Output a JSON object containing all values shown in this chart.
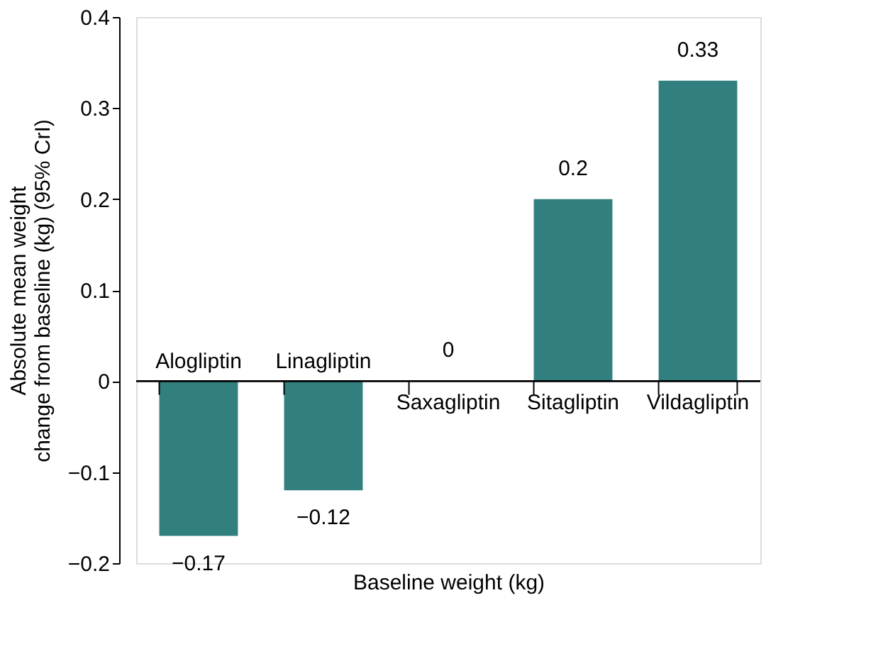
{
  "chart_data": {
    "type": "bar",
    "categories": [
      "Alogliptin",
      "Linagliptin",
      "Saxagliptin",
      "Sitagliptin",
      "Vildagliptin"
    ],
    "values": [
      -0.17,
      -0.12,
      0,
      0.2,
      0.33
    ],
    "color": "#317f7f",
    "xlabel": "Baseline weight (kg)",
    "ylabel": "Absolute mean weight change from baseline (kg) (95% CrI)",
    "ylim": [
      -0.2,
      0.4
    ],
    "yticks": [
      -0.2,
      -0.1,
      0,
      0.1,
      0.2,
      0.3,
      0.4
    ],
    "data_labels": true,
    "grid": false
  }
}
